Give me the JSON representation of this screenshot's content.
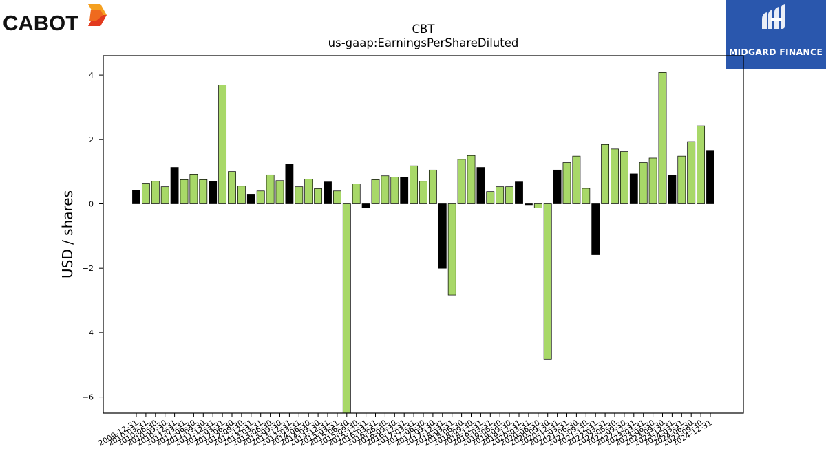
{
  "brand": {
    "left_logo_text": "CABOT",
    "right_logo_text": "MIDGARD FINANCE",
    "right_logo_color": "#2a57ad"
  },
  "chart_data": {
    "type": "bar",
    "title": "CBT",
    "subtitle": "us-gaap:EarningsPerShareDiluted",
    "ylabel": "USD / shares",
    "xlabel": "",
    "ylim": [
      -6.5,
      4.6
    ],
    "yticks": [
      4,
      2,
      0,
      -2,
      -4,
      -6
    ],
    "grid": false,
    "colors": {
      "annual": "#000000",
      "quarterly": "#a8d868",
      "edge": "#000000"
    },
    "categories": [
      "2009-12-31",
      "2010-03-31",
      "2010-06-30",
      "2010-09-30",
      "2010-12-31",
      "2011-03-31",
      "2011-06-30",
      "2011-09-30",
      "2011-12-31",
      "2012-03-31",
      "2012-06-30",
      "2012-09-30",
      "2012-12-31",
      "2013-03-31",
      "2013-06-30",
      "2013-09-30",
      "2013-12-31",
      "2014-03-31",
      "2014-06-30",
      "2014-09-30",
      "2014-12-31",
      "2015-03-31",
      "2015-06-30",
      "2015-09-30",
      "2015-12-31",
      "2016-03-31",
      "2016-06-30",
      "2016-09-30",
      "2016-12-31",
      "2017-03-31",
      "2017-06-30",
      "2017-09-30",
      "2017-12-31",
      "2018-03-31",
      "2018-06-30",
      "2018-09-30",
      "2018-12-31",
      "2019-03-31",
      "2019-06-30",
      "2019-09-30",
      "2019-12-31",
      "2020-03-31",
      "2020-06-30",
      "2020-09-30",
      "2020-12-31",
      "2021-03-31",
      "2021-06-30",
      "2021-09-30",
      "2021-12-31",
      "2022-03-31",
      "2022-06-30",
      "2022-09-30",
      "2022-12-31",
      "2023-03-31",
      "2023-06-30",
      "2023-09-30",
      "2023-12-31",
      "2024-03-31",
      "2024-06-30",
      "2024-09-30",
      "2024-12-31"
    ],
    "values": [
      0.43,
      0.64,
      0.7,
      0.53,
      1.13,
      0.75,
      0.92,
      0.75,
      0.7,
      3.69,
      1.0,
      0.55,
      0.3,
      0.4,
      0.9,
      0.72,
      1.22,
      0.53,
      0.77,
      0.47,
      0.68,
      0.4,
      -6.7,
      0.62,
      -0.12,
      0.75,
      0.87,
      0.83,
      0.83,
      1.18,
      0.7,
      1.05,
      -2.0,
      -2.83,
      1.38,
      1.5,
      1.13,
      0.38,
      0.53,
      0.53,
      0.68,
      -0.03,
      -0.13,
      -4.82,
      1.05,
      1.28,
      1.48,
      0.48,
      -1.58,
      1.84,
      1.7,
      1.62,
      0.93,
      1.28,
      1.42,
      4.08,
      0.88,
      1.48,
      1.93,
      2.42,
      1.66
    ],
    "period_type": [
      "annual",
      "q",
      "q",
      "q",
      "annual",
      "q",
      "q",
      "q",
      "annual",
      "q",
      "q",
      "q",
      "annual",
      "q",
      "q",
      "q",
      "annual",
      "q",
      "q",
      "q",
      "annual",
      "q",
      "q",
      "q",
      "annual",
      "q",
      "q",
      "q",
      "annual",
      "q",
      "q",
      "q",
      "annual",
      "q",
      "q",
      "q",
      "annual",
      "q",
      "q",
      "q",
      "annual",
      "annual",
      "q",
      "q",
      "annual",
      "q",
      "q",
      "q",
      "annual",
      "q",
      "q",
      "q",
      "annual",
      "q",
      "q",
      "q",
      "annual",
      "q",
      "q",
      "q",
      "annual"
    ]
  }
}
